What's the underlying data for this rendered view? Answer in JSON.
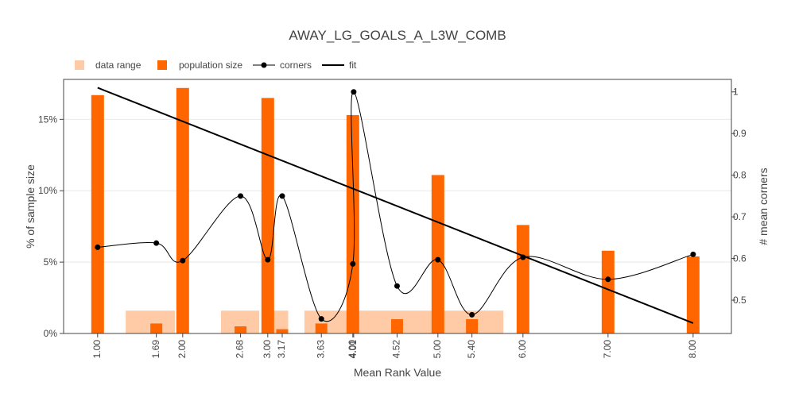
{
  "chart_data": {
    "type": "bar",
    "title": "AWAY_LG_GOALS_A_L3W_COMB",
    "xlabel": "Mean Rank Value",
    "ylabel": "% of sample size",
    "y2label": "# mean corners",
    "xlim": [
      0.6,
      8.45
    ],
    "ylim": [
      0,
      17.8
    ],
    "y2lim": [
      0.42,
      1.03
    ],
    "legend_position": "top-left",
    "colors": {
      "population": "#ff6600",
      "data_range": "#ffcba6",
      "corners": "#000000",
      "fit": "#000000",
      "grid": "#e8e8e8"
    },
    "x_tick_labels": [
      "1.00",
      "1.69",
      "2.00",
      "2.68",
      "3.00",
      "3.17",
      "3.63",
      "4.00",
      "4.01",
      "4.52",
      "5.00",
      "5.40",
      "6.00",
      "7.00",
      "8.00"
    ],
    "y_tick_labels": [
      "0%",
      "5%",
      "10%",
      "15%"
    ],
    "y_ticks": [
      0,
      5,
      10,
      15
    ],
    "y2_tick_labels": [
      "0.5",
      "0.6",
      "0.7",
      "0.8",
      "0.9",
      "1"
    ],
    "y2_ticks": [
      0.5,
      0.6,
      0.7,
      0.8,
      0.9,
      1.0
    ],
    "legend": [
      {
        "label": "data range",
        "kind": "range"
      },
      {
        "label": "population size",
        "kind": "bar"
      },
      {
        "label": "corners",
        "kind": "line-marker"
      },
      {
        "label": "fit",
        "kind": "line"
      }
    ],
    "data_range": [
      {
        "x0": 1.33,
        "x1": 1.91,
        "value": 1.6
      },
      {
        "x0": 2.45,
        "x1": 2.9,
        "value": 1.6
      },
      {
        "x0": 3.06,
        "x1": 3.24,
        "value": 1.6
      },
      {
        "x0": 3.43,
        "x1": 3.98,
        "value": 1.6
      },
      {
        "x0": 4.07,
        "x1": 4.95,
        "value": 1.6
      },
      {
        "x0": 5.05,
        "x1": 5.77,
        "value": 1.6
      }
    ],
    "population": [
      {
        "x": 1.0,
        "value": 16.7
      },
      {
        "x": 1.69,
        "value": 0.7
      },
      {
        "x": 2.0,
        "value": 17.2
      },
      {
        "x": 2.68,
        "value": 0.5
      },
      {
        "x": 3.0,
        "value": 16.5
      },
      {
        "x": 3.17,
        "value": 0.3
      },
      {
        "x": 3.63,
        "value": 0.7
      },
      {
        "x": 4.0,
        "value": 15.3
      },
      {
        "x": 4.52,
        "value": 1.0
      },
      {
        "x": 5.0,
        "value": 11.1
      },
      {
        "x": 5.4,
        "value": 1.0
      },
      {
        "x": 6.0,
        "value": 7.6
      },
      {
        "x": 7.0,
        "value": 5.8
      },
      {
        "x": 8.0,
        "value": 5.4
      }
    ],
    "corners": [
      {
        "x": 1.0,
        "value": 0.627
      },
      {
        "x": 1.69,
        "value": 0.637
      },
      {
        "x": 2.0,
        "value": 0.595
      },
      {
        "x": 2.68,
        "value": 0.75
      },
      {
        "x": 3.0,
        "value": 0.597
      },
      {
        "x": 3.17,
        "value": 0.75
      },
      {
        "x": 3.63,
        "value": 0.455
      },
      {
        "x": 4.0,
        "value": 0.587
      },
      {
        "x": 4.01,
        "value": 1.0
      },
      {
        "x": 4.52,
        "value": 0.534
      },
      {
        "x": 5.0,
        "value": 0.597
      },
      {
        "x": 5.4,
        "value": 0.465
      },
      {
        "x": 6.0,
        "value": 0.603
      },
      {
        "x": 7.0,
        "value": 0.55
      },
      {
        "x": 8.0,
        "value": 0.61
      }
    ],
    "fit": [
      {
        "x": 1.0,
        "value": 1.01
      },
      {
        "x": 8.0,
        "value": 0.445
      }
    ]
  }
}
